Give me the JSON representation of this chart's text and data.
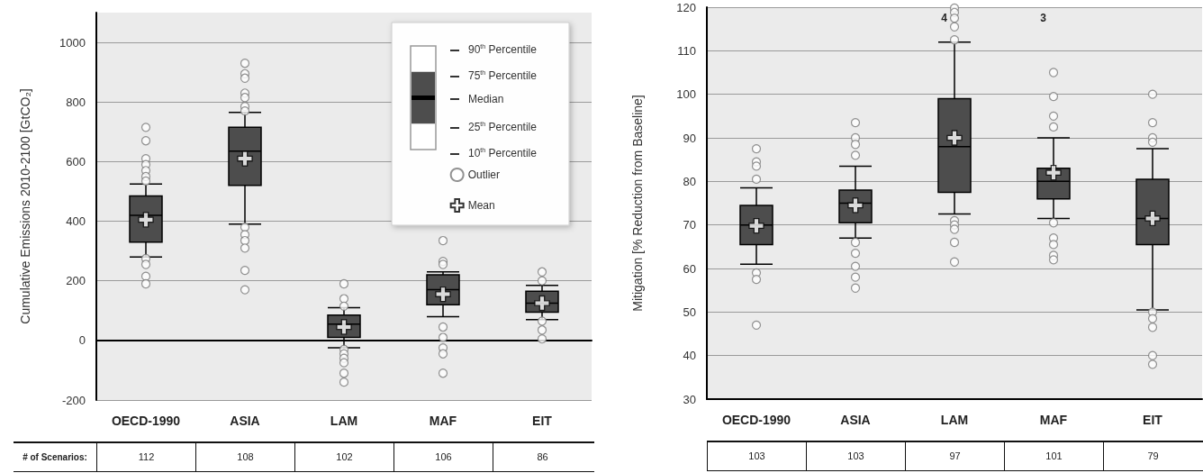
{
  "chart_data": [
    {
      "type": "box",
      "ylabel": "Cumulative Emissions 2010-2100 [GtCO₂]",
      "categories": [
        "OECD-1990",
        "ASIA",
        "LAM",
        "MAF",
        "EIT"
      ],
      "ylim": [
        -200,
        1100
      ],
      "yticks": [
        -200,
        0,
        200,
        400,
        600,
        800,
        1000
      ],
      "grid": "y",
      "legend": "top right",
      "series": [
        {
          "type": "box",
          "color": "#4d4d4d",
          "boxes": [
            {
              "low": 280,
              "q1": 330,
              "median": 420,
              "q3": 485,
              "high": 525
            },
            {
              "low": 390,
              "q1": 520,
              "median": 635,
              "q3": 715,
              "high": 765
            },
            {
              "low": -25,
              "q1": 10,
              "median": 55,
              "q3": 85,
              "high": 110
            },
            {
              "low": 80,
              "q1": 120,
              "median": 170,
              "q3": 220,
              "high": 230
            },
            {
              "low": 70,
              "q1": 95,
              "median": 125,
              "q3": 165,
              "high": 185
            }
          ]
        },
        {
          "type": "scatter",
          "name": "Outlier",
          "color": "#ffffff",
          "marker": "circle",
          "x": [
            "OECD-1990",
            "OECD-1990",
            "OECD-1990",
            "OECD-1990",
            "OECD-1990",
            "OECD-1990",
            "OECD-1990",
            "OECD-1990",
            "OECD-1990",
            "OECD-1990",
            "OECD-1990",
            "ASIA",
            "ASIA",
            "ASIA",
            "ASIA",
            "ASIA",
            "ASIA",
            "ASIA",
            "ASIA",
            "ASIA",
            "ASIA",
            "ASIA",
            "ASIA",
            "ASIA",
            "LAM",
            "LAM",
            "LAM",
            "LAM",
            "LAM",
            "LAM",
            "LAM",
            "LAM",
            "LAM",
            "MAF",
            "MAF",
            "MAF",
            "MAF",
            "MAF",
            "MAF",
            "MAF",
            "MAF",
            "EIT",
            "EIT",
            "EIT",
            "EIT",
            "EIT"
          ],
          "values": [
            715,
            670,
            610,
            590,
            570,
            550,
            535,
            275,
            255,
            215,
            190,
            930,
            895,
            880,
            830,
            815,
            785,
            770,
            380,
            355,
            335,
            310,
            235,
            170,
            190,
            140,
            115,
            -30,
            -45,
            -60,
            -75,
            -110,
            -140,
            335,
            265,
            255,
            45,
            10,
            -25,
            -45,
            -110,
            230,
            200,
            65,
            35,
            5
          ]
        },
        {
          "type": "scatter",
          "name": "Mean",
          "color": "#ffffff",
          "marker": "cross",
          "x": [
            "OECD-1990",
            "ASIA",
            "LAM",
            "MAF",
            "EIT"
          ],
          "values": [
            405,
            610,
            45,
            155,
            125
          ]
        }
      ],
      "annotations": [
        "90$^{th}$ Percentile",
        "75$^{th}$ Percentile",
        "Median",
        "25$^{th}$ Percentile",
        "10$^{th}$ Percentile",
        "# of Scenarios:",
        "112",
        "108",
        "102",
        "106",
        "86"
      ]
    },
    {
      "type": "box",
      "ylabel": "Mitigation [% Reduction from Baseline]",
      "categories": [
        "OECD-1990",
        "ASIA",
        "LAM",
        "MAF",
        "EIT"
      ],
      "ylim": [
        30,
        120
      ],
      "yticks": [
        30,
        40,
        50,
        60,
        70,
        80,
        90,
        100,
        110,
        120
      ],
      "grid": "y",
      "series": [
        {
          "type": "box",
          "color": "#4d4d4d",
          "boxes": [
            {
              "low": 61,
              "q1": 65.5,
              "median": 70,
              "q3": 74.5,
              "high": 78.5
            },
            {
              "low": 67,
              "q1": 70.5,
              "median": 75,
              "q3": 78,
              "high": 83.5
            },
            {
              "low": 72.5,
              "q1": 77.5,
              "median": 88,
              "q3": 99,
              "high": 112
            },
            {
              "low": 71.5,
              "q1": 76,
              "median": 80,
              "q3": 83,
              "high": 90
            },
            {
              "low": 50.5,
              "q1": 65.5,
              "median": 71.5,
              "q3": 80.5,
              "high": 87.5
            }
          ]
        },
        {
          "type": "scatter",
          "color": "#ffffff",
          "marker": "circle",
          "x": [
            "OECD-1990",
            "OECD-1990",
            "OECD-1990",
            "OECD-1990",
            "OECD-1990",
            "OECD-1990",
            "OECD-1990",
            "ASIA",
            "ASIA",
            "ASIA",
            "ASIA",
            "ASIA",
            "ASIA",
            "ASIA",
            "ASIA",
            "ASIA",
            "LAM",
            "LAM",
            "LAM",
            "LAM",
            "LAM",
            "LAM",
            "LAM",
            "LAM",
            "LAM",
            "LAM",
            "MAF",
            "MAF",
            "MAF",
            "MAF",
            "MAF",
            "MAF",
            "MAF",
            "MAF",
            "MAF",
            "EIT",
            "EIT",
            "EIT",
            "EIT",
            "EIT",
            "EIT",
            "EIT",
            "EIT",
            "EIT"
          ],
          "values": [
            87.5,
            84.5,
            83.5,
            80.5,
            59,
            57.5,
            47,
            93.5,
            90,
            88.5,
            86,
            66,
            63.5,
            60.5,
            58,
            55.5,
            119.8,
            118.8,
            117.5,
            115.5,
            112.5,
            71,
            70,
            69,
            66,
            61.5,
            105,
            99.5,
            95,
            92.5,
            70.5,
            67,
            65.5,
            63,
            62,
            100,
            93.5,
            90,
            89,
            50,
            48.5,
            46.5,
            40,
            38
          ]
        },
        {
          "type": "scatter",
          "color": "#ffffff",
          "marker": "cross",
          "x": [
            "OECD-1990",
            "ASIA",
            "LAM",
            "MAF",
            "EIT"
          ],
          "values": [
            69.8,
            74.5,
            90,
            82,
            71.5
          ]
        }
      ],
      "annotations": [
        "4",
        "3",
        "103",
        "103",
        "97",
        "101",
        "79"
      ]
    }
  ]
}
